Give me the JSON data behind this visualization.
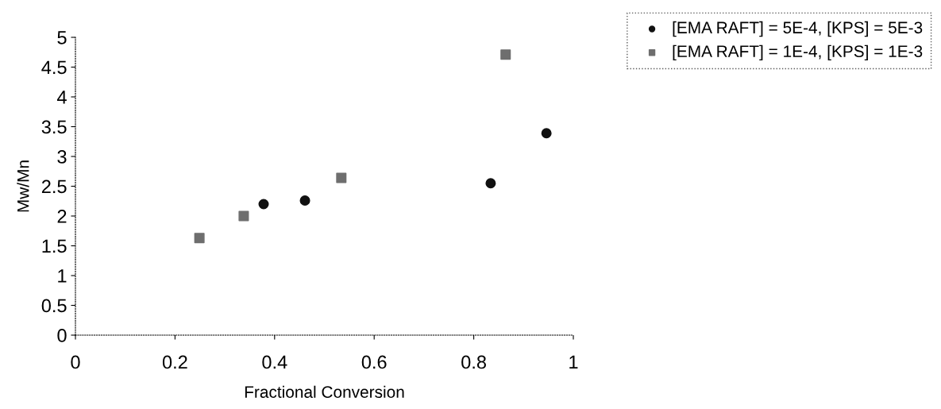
{
  "chart_data": {
    "type": "scatter",
    "xlabel": "Fractional Conversion",
    "ylabel": "Mw/Mn",
    "series": [
      {
        "name": "[EMA RAFT] = 5E-4, [KPS] = 5E-3",
        "color": "#111111",
        "marker": "circle",
        "x": [
          0.378,
          0.461,
          0.834,
          0.946
        ],
        "values": [
          2.2,
          2.26,
          2.55,
          3.39
        ]
      },
      {
        "name": "[EMA RAFT] = 1E-4, [KPS] = 1E-3",
        "color": "#6e6e6e",
        "marker": "square",
        "x": [
          0.249,
          0.338,
          0.534,
          0.864
        ],
        "values": [
          1.63,
          2.0,
          2.64,
          4.71
        ]
      }
    ],
    "xlim": [
      0,
      1
    ],
    "xticks": [
      0,
      0.2,
      0.4,
      0.6,
      0.8,
      1
    ],
    "ylim": [
      0,
      5
    ],
    "yticks": [
      0,
      0.5,
      1,
      1.5,
      2,
      2.5,
      3,
      3.5,
      4,
      4.5,
      5
    ],
    "grid": false,
    "legend": "top right"
  }
}
